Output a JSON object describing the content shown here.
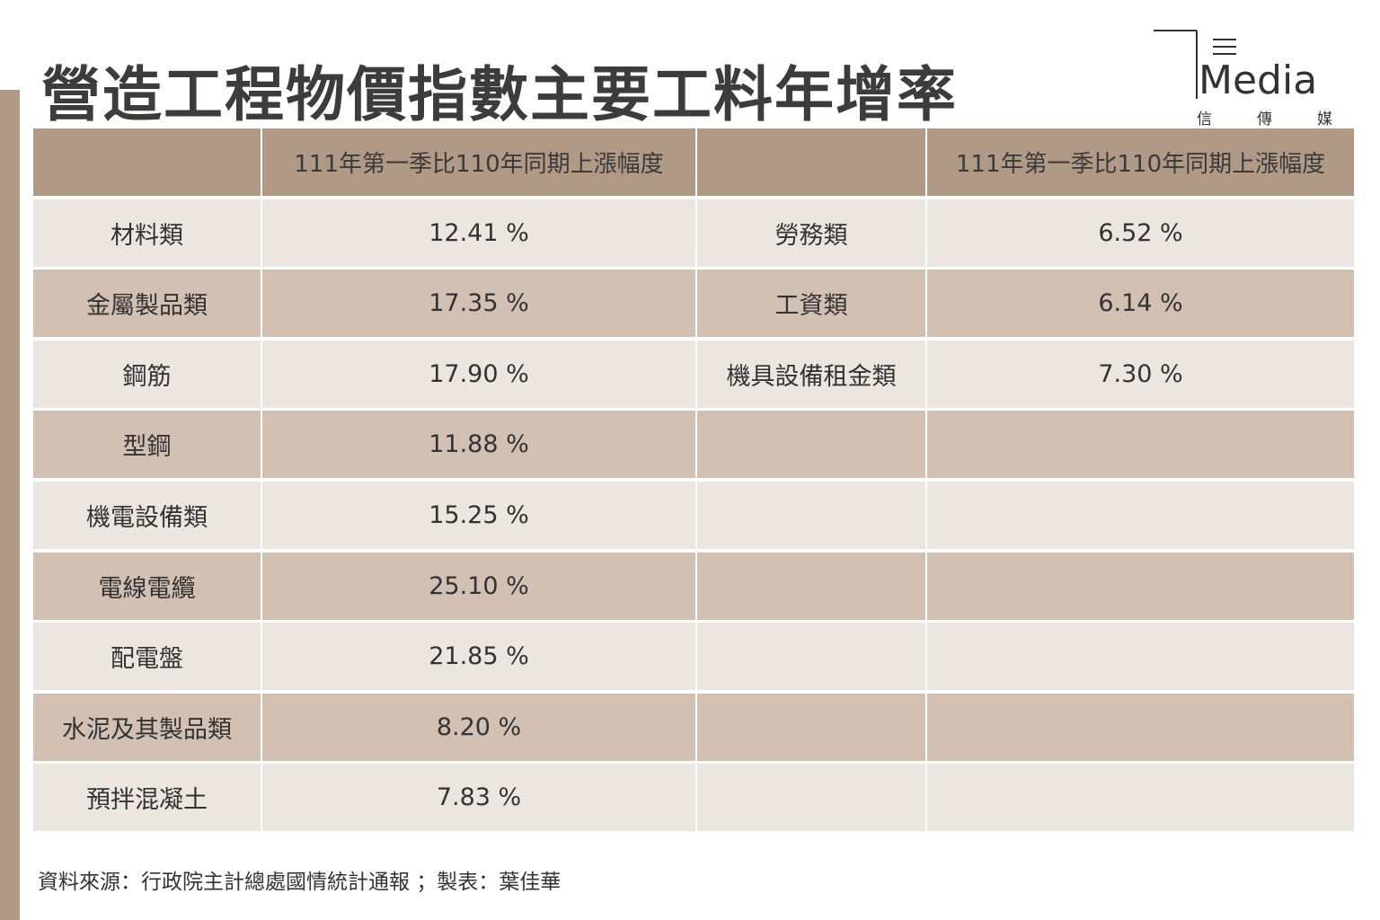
{
  "header": {
    "title": "營造工程物價指數主要工料年增率",
    "logo": "Media",
    "logo_sub": "信傳媒"
  },
  "table": {
    "header": [
      "111年第一季比110年同期上漲幅度",
      "111年第一季比110年同期上漲幅度"
    ],
    "left": [
      {
        "label": "材料類",
        "value": "12.41 %"
      },
      {
        "label": "金屬製品類",
        "value": "17.35 %"
      },
      {
        "label": "鋼筋",
        "value": "17.90 %"
      },
      {
        "label": "型鋼",
        "value": "11.88 %"
      },
      {
        "label": "機電設備類",
        "value": "15.25 %"
      },
      {
        "label": "電線電纜",
        "value": "25.10 %"
      },
      {
        "label": "配電盤",
        "value": "21.85 %"
      },
      {
        "label": "水泥及其製品類",
        "value": "8.20 %"
      },
      {
        "label": "預拌混凝土",
        "value": "7.83 %"
      }
    ],
    "right": [
      {
        "label": "勞務類",
        "value": "6.52 %"
      },
      {
        "label": "工資類",
        "value": "6.14 %"
      },
      {
        "label": "機具設備租金類",
        "value": "7.30 %"
      }
    ]
  },
  "footer": {
    "source": "資料來源：行政院主計總處國情統計通報 ；製表：葉佳華"
  }
}
